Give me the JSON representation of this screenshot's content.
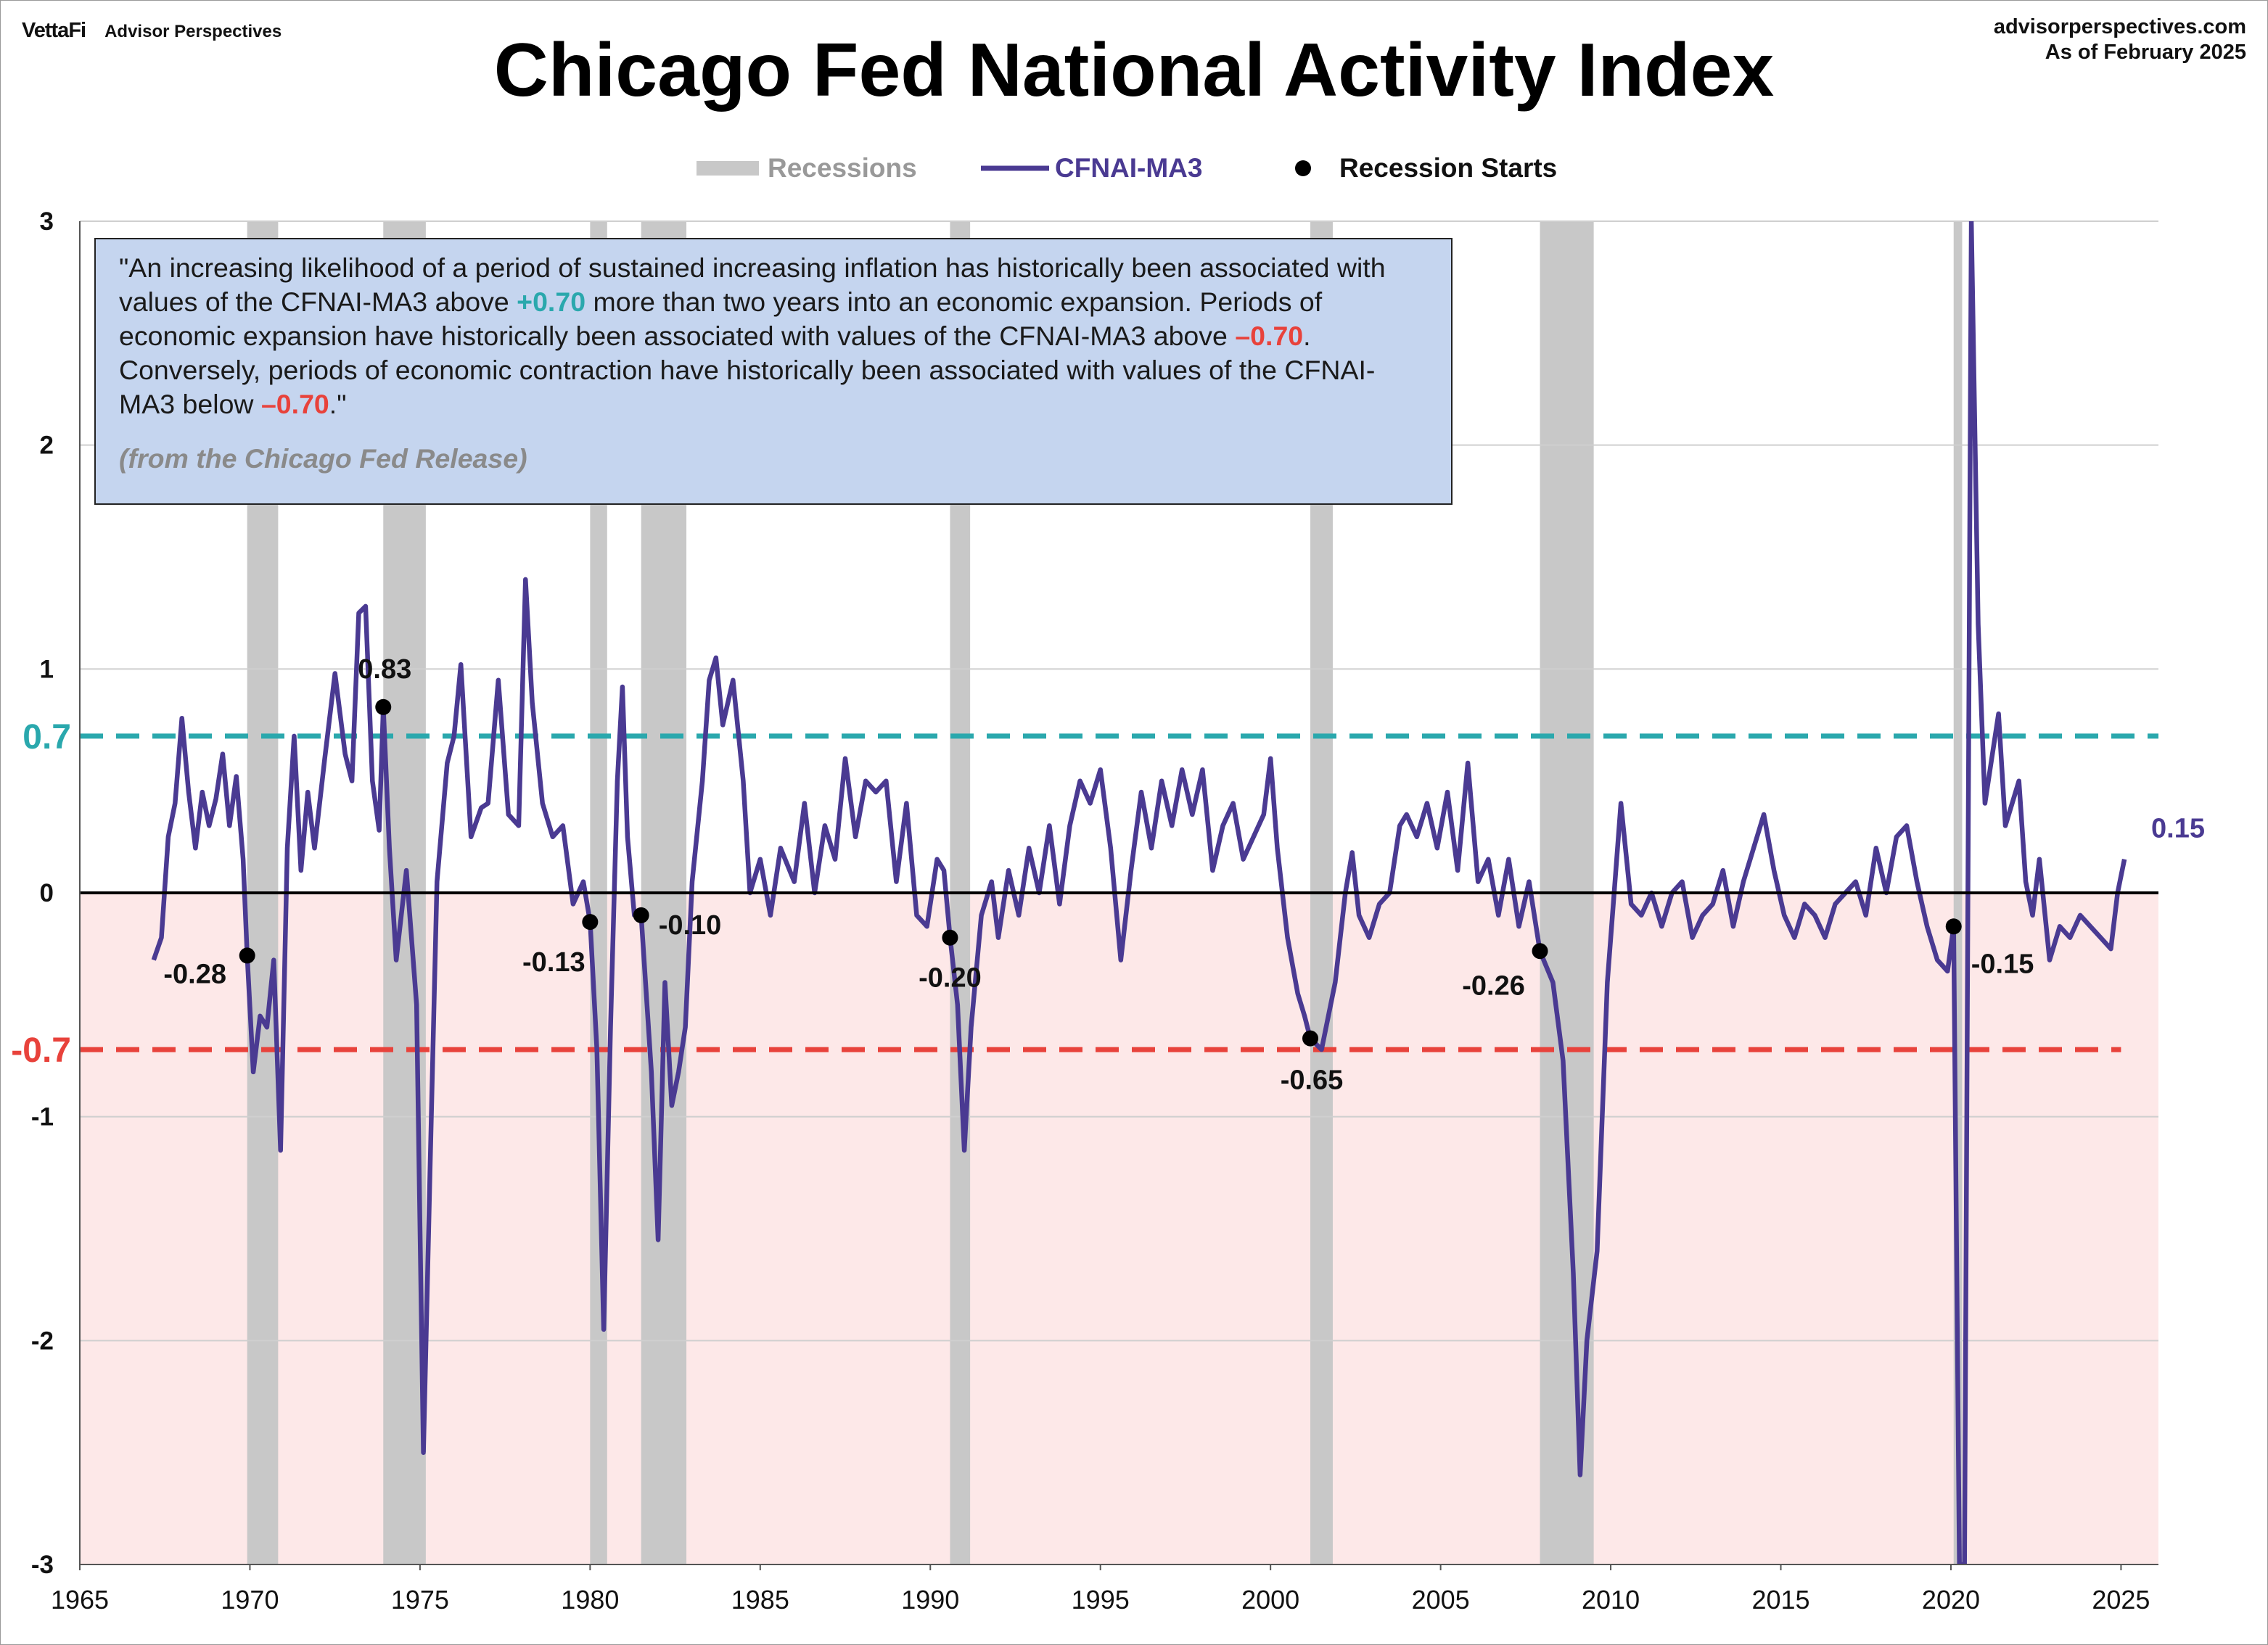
{
  "header": {
    "brand_logo": "VettaFi",
    "brand_name": "Advisor Perspectives",
    "site": "advisorperspectives.com",
    "as_of": "As of February 2025"
  },
  "title": "Chicago Fed National Activity Index",
  "quote": {
    "text_1": "\"An increasing likelihood of a period of sustained increasing inflation has historically been associated with values of the CFNAI-MA3 above ",
    "hl_1": "+0.70",
    "text_2": " more than two years into an economic expansion. Periods of economic expansion have historically been associated with values of the CFNAI-MA3 above ",
    "hl_2": "–0.70",
    "text_3": ". Conversely, periods of economic contraction have historically been associated with values of the CFNAI-MA3 below ",
    "hl_3": "–0.70",
    "text_4": ".\"",
    "source": "(from the Chicago Fed Release)"
  },
  "colors": {
    "line": "#4a3a92",
    "recession": "#c8c8c8",
    "upper_threshold": "#2aa8ad",
    "lower_threshold": "#e8423b",
    "negative_zone": "#fde8e8",
    "quote_bg": "#c5d5ef"
  },
  "chart_data": {
    "type": "line",
    "title": "Chicago Fed National Activity Index",
    "xlim": [
      1965,
      2026.1
    ],
    "ylim": [
      -3,
      3
    ],
    "x_ticks": [
      "1965",
      "1970",
      "1975",
      "1980",
      "1985",
      "1990",
      "1995",
      "2000",
      "2005",
      "2010",
      "2015",
      "2020",
      "2025"
    ],
    "y_ticks": [
      "3",
      "2",
      "1",
      "0",
      "-1",
      "-2",
      "-3"
    ],
    "grid": "horizontal",
    "legend": {
      "placement": "top-center",
      "items": [
        "Recessions",
        "CFNAI-MA3",
        "Recession Starts"
      ]
    },
    "thresholds": [
      {
        "value": 0.7,
        "label": "0.7",
        "style": "dashed"
      },
      {
        "value": -0.7,
        "label": "-0.7",
        "style": "dashed"
      }
    ],
    "recessions": [
      [
        1969.92,
        1970.83
      ],
      [
        1973.92,
        1975.17
      ],
      [
        1980.0,
        1980.5
      ],
      [
        1981.5,
        1982.83
      ],
      [
        1990.58,
        1991.17
      ],
      [
        2001.17,
        2001.83
      ],
      [
        2007.92,
        2009.5
      ],
      [
        2020.08,
        2020.33
      ]
    ],
    "recession_starts": [
      {
        "x": 1969.92,
        "y": -0.28,
        "label": "-0.28"
      },
      {
        "x": 1973.92,
        "y": 0.83,
        "label": "0.83"
      },
      {
        "x": 1980.0,
        "y": -0.13,
        "label": "-0.13"
      },
      {
        "x": 1981.5,
        "y": -0.1,
        "label": "-0.10"
      },
      {
        "x": 1990.58,
        "y": -0.2,
        "label": "-0.20"
      },
      {
        "x": 2001.17,
        "y": -0.65,
        "label": "-0.65"
      },
      {
        "x": 2007.92,
        "y": -0.26,
        "label": "-0.26"
      },
      {
        "x": 2020.08,
        "y": -0.15,
        "label": "-0.15"
      }
    ],
    "last_value_label": "0.15",
    "series": [
      {
        "name": "CFNAI-MA3",
        "points": [
          [
            1967.17,
            -0.3
          ],
          [
            1967.4,
            -0.2
          ],
          [
            1967.6,
            0.25
          ],
          [
            1967.8,
            0.4
          ],
          [
            1968.0,
            0.78
          ],
          [
            1968.2,
            0.45
          ],
          [
            1968.4,
            0.2
          ],
          [
            1968.6,
            0.45
          ],
          [
            1968.8,
            0.3
          ],
          [
            1969.0,
            0.42
          ],
          [
            1969.2,
            0.62
          ],
          [
            1969.4,
            0.3
          ],
          [
            1969.6,
            0.52
          ],
          [
            1969.8,
            0.15
          ],
          [
            1969.92,
            -0.28
          ],
          [
            1970.1,
            -0.8
          ],
          [
            1970.3,
            -0.55
          ],
          [
            1970.5,
            -0.6
          ],
          [
            1970.7,
            -0.3
          ],
          [
            1970.9,
            -1.15
          ],
          [
            1971.1,
            0.2
          ],
          [
            1971.3,
            0.7
          ],
          [
            1971.5,
            0.1
          ],
          [
            1971.7,
            0.45
          ],
          [
            1971.9,
            0.2
          ],
          [
            1972.2,
            0.6
          ],
          [
            1972.5,
            0.98
          ],
          [
            1972.8,
            0.62
          ],
          [
            1973.0,
            0.5
          ],
          [
            1973.2,
            1.25
          ],
          [
            1973.4,
            1.28
          ],
          [
            1973.6,
            0.5
          ],
          [
            1973.8,
            0.28
          ],
          [
            1973.92,
            0.83
          ],
          [
            1974.1,
            0.2
          ],
          [
            1974.3,
            -0.3
          ],
          [
            1974.6,
            0.1
          ],
          [
            1974.9,
            -0.5
          ],
          [
            1975.1,
            -2.5
          ],
          [
            1975.3,
            -1.2
          ],
          [
            1975.5,
            0.05
          ],
          [
            1975.8,
            0.58
          ],
          [
            1976.0,
            0.7
          ],
          [
            1976.2,
            1.02
          ],
          [
            1976.5,
            0.25
          ],
          [
            1976.8,
            0.38
          ],
          [
            1977.0,
            0.4
          ],
          [
            1977.3,
            0.95
          ],
          [
            1977.6,
            0.35
          ],
          [
            1977.9,
            0.3
          ],
          [
            1978.1,
            1.4
          ],
          [
            1978.3,
            0.85
          ],
          [
            1978.6,
            0.4
          ],
          [
            1978.9,
            0.25
          ],
          [
            1979.2,
            0.3
          ],
          [
            1979.5,
            -0.05
          ],
          [
            1979.8,
            0.05
          ],
          [
            1980.0,
            -0.13
          ],
          [
            1980.2,
            -0.7
          ],
          [
            1980.4,
            -1.95
          ],
          [
            1980.6,
            -0.6
          ],
          [
            1980.8,
            0.5
          ],
          [
            1980.95,
            0.92
          ],
          [
            1981.1,
            0.25
          ],
          [
            1981.3,
            -0.1
          ],
          [
            1981.5,
            -0.1
          ],
          [
            1981.8,
            -0.8
          ],
          [
            1982.0,
            -1.55
          ],
          [
            1982.2,
            -0.4
          ],
          [
            1982.4,
            -0.95
          ],
          [
            1982.6,
            -0.8
          ],
          [
            1982.8,
            -0.6
          ],
          [
            1983.0,
            0.05
          ],
          [
            1983.3,
            0.5
          ],
          [
            1983.5,
            0.95
          ],
          [
            1983.7,
            1.05
          ],
          [
            1983.9,
            0.75
          ],
          [
            1984.2,
            0.95
          ],
          [
            1984.5,
            0.5
          ],
          [
            1984.7,
            0.0
          ],
          [
            1985.0,
            0.15
          ],
          [
            1985.3,
            -0.1
          ],
          [
            1985.6,
            0.2
          ],
          [
            1986.0,
            0.05
          ],
          [
            1986.3,
            0.4
          ],
          [
            1986.6,
            0.0
          ],
          [
            1986.9,
            0.3
          ],
          [
            1987.2,
            0.15
          ],
          [
            1987.5,
            0.6
          ],
          [
            1987.8,
            0.25
          ],
          [
            1988.1,
            0.5
          ],
          [
            1988.4,
            0.45
          ],
          [
            1988.7,
            0.5
          ],
          [
            1989.0,
            0.05
          ],
          [
            1989.3,
            0.4
          ],
          [
            1989.6,
            -0.1
          ],
          [
            1989.9,
            -0.15
          ],
          [
            1990.2,
            0.15
          ],
          [
            1990.4,
            0.1
          ],
          [
            1990.58,
            -0.2
          ],
          [
            1990.8,
            -0.5
          ],
          [
            1991.0,
            -1.15
          ],
          [
            1991.2,
            -0.6
          ],
          [
            1991.5,
            -0.1
          ],
          [
            1991.8,
            0.05
          ],
          [
            1992.0,
            -0.2
          ],
          [
            1992.3,
            0.1
          ],
          [
            1992.6,
            -0.1
          ],
          [
            1992.9,
            0.2
          ],
          [
            1993.2,
            0.0
          ],
          [
            1993.5,
            0.3
          ],
          [
            1993.8,
            -0.05
          ],
          [
            1994.1,
            0.3
          ],
          [
            1994.4,
            0.5
          ],
          [
            1994.7,
            0.4
          ],
          [
            1995.0,
            0.55
          ],
          [
            1995.3,
            0.2
          ],
          [
            1995.6,
            -0.3
          ],
          [
            1995.9,
            0.1
          ],
          [
            1996.2,
            0.45
          ],
          [
            1996.5,
            0.2
          ],
          [
            1996.8,
            0.5
          ],
          [
            1997.1,
            0.3
          ],
          [
            1997.4,
            0.55
          ],
          [
            1997.7,
            0.35
          ],
          [
            1998.0,
            0.55
          ],
          [
            1998.3,
            0.1
          ],
          [
            1998.6,
            0.3
          ],
          [
            1998.9,
            0.4
          ],
          [
            1999.2,
            0.15
          ],
          [
            1999.5,
            0.25
          ],
          [
            1999.8,
            0.35
          ],
          [
            2000.0,
            0.6
          ],
          [
            2000.2,
            0.2
          ],
          [
            2000.5,
            -0.2
          ],
          [
            2000.8,
            -0.45
          ],
          [
            2001.0,
            -0.55
          ],
          [
            2001.17,
            -0.65
          ],
          [
            2001.5,
            -0.7
          ],
          [
            2001.9,
            -0.4
          ],
          [
            2002.2,
            0.0
          ],
          [
            2002.4,
            0.18
          ],
          [
            2002.6,
            -0.1
          ],
          [
            2002.9,
            -0.2
          ],
          [
            2003.2,
            -0.05
          ],
          [
            2003.5,
            0.0
          ],
          [
            2003.8,
            0.3
          ],
          [
            2004.0,
            0.35
          ],
          [
            2004.3,
            0.25
          ],
          [
            2004.6,
            0.4
          ],
          [
            2004.9,
            0.2
          ],
          [
            2005.2,
            0.45
          ],
          [
            2005.5,
            0.1
          ],
          [
            2005.8,
            0.58
          ],
          [
            2006.1,
            0.05
          ],
          [
            2006.4,
            0.15
          ],
          [
            2006.7,
            -0.1
          ],
          [
            2007.0,
            0.15
          ],
          [
            2007.3,
            -0.15
          ],
          [
            2007.6,
            0.05
          ],
          [
            2007.92,
            -0.26
          ],
          [
            2008.3,
            -0.4
          ],
          [
            2008.6,
            -0.75
          ],
          [
            2008.9,
            -1.7
          ],
          [
            2009.1,
            -2.6
          ],
          [
            2009.3,
            -2.0
          ],
          [
            2009.6,
            -1.6
          ],
          [
            2009.9,
            -0.4
          ],
          [
            2010.1,
            0.0
          ],
          [
            2010.3,
            0.4
          ],
          [
            2010.6,
            -0.05
          ],
          [
            2010.9,
            -0.1
          ],
          [
            2011.2,
            0.0
          ],
          [
            2011.5,
            -0.15
          ],
          [
            2011.8,
            0.0
          ],
          [
            2012.1,
            0.05
          ],
          [
            2012.4,
            -0.2
          ],
          [
            2012.7,
            -0.1
          ],
          [
            2013.0,
            -0.05
          ],
          [
            2013.3,
            0.1
          ],
          [
            2013.6,
            -0.15
          ],
          [
            2013.9,
            0.05
          ],
          [
            2014.2,
            0.2
          ],
          [
            2014.5,
            0.35
          ],
          [
            2014.8,
            0.1
          ],
          [
            2015.1,
            -0.1
          ],
          [
            2015.4,
            -0.2
          ],
          [
            2015.7,
            -0.05
          ],
          [
            2016.0,
            -0.1
          ],
          [
            2016.3,
            -0.2
          ],
          [
            2016.6,
            -0.05
          ],
          [
            2016.9,
            0.0
          ],
          [
            2017.2,
            0.05
          ],
          [
            2017.5,
            -0.1
          ],
          [
            2017.8,
            0.2
          ],
          [
            2018.1,
            0.0
          ],
          [
            2018.4,
            0.25
          ],
          [
            2018.7,
            0.3
          ],
          [
            2019.0,
            0.05
          ],
          [
            2019.3,
            -0.15
          ],
          [
            2019.6,
            -0.3
          ],
          [
            2019.9,
            -0.35
          ],
          [
            2020.08,
            -0.15
          ],
          [
            2020.25,
            -3.0
          ],
          [
            2020.4,
            -3.0
          ],
          [
            2020.6,
            3.0
          ],
          [
            2020.8,
            1.2
          ],
          [
            2021.0,
            0.4
          ],
          [
            2021.2,
            0.6
          ],
          [
            2021.4,
            0.8
          ],
          [
            2021.6,
            0.3
          ],
          [
            2021.8,
            0.4
          ],
          [
            2022.0,
            0.5
          ],
          [
            2022.2,
            0.05
          ],
          [
            2022.4,
            -0.1
          ],
          [
            2022.6,
            0.15
          ],
          [
            2022.9,
            -0.3
          ],
          [
            2023.2,
            -0.15
          ],
          [
            2023.5,
            -0.2
          ],
          [
            2023.8,
            -0.1
          ],
          [
            2024.1,
            -0.15
          ],
          [
            2024.4,
            -0.2
          ],
          [
            2024.7,
            -0.25
          ],
          [
            2024.9,
            0.0
          ],
          [
            2025.1,
            0.15
          ]
        ]
      }
    ]
  }
}
